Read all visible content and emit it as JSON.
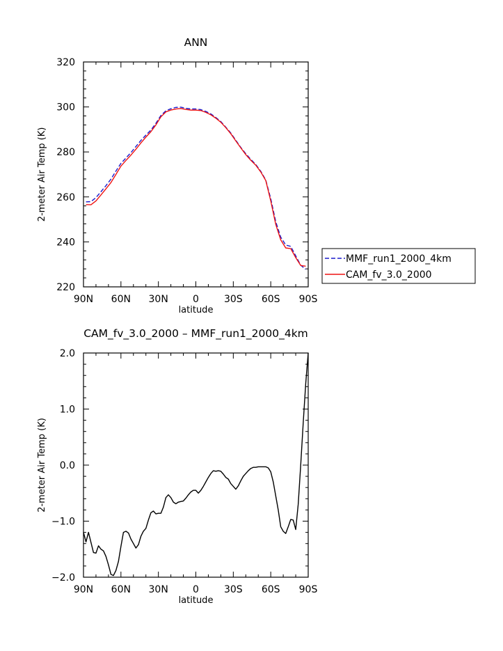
{
  "chart_data": [
    {
      "type": "line",
      "title": "ANN",
      "xlabel": "latitude",
      "ylabel": "2-meter Air Temp (K)",
      "xlim": [
        90,
        -90
      ],
      "ylim": [
        220,
        320
      ],
      "x_ticks": [
        {
          "value": 90,
          "label": "90N"
        },
        {
          "value": 60,
          "label": "60N"
        },
        {
          "value": 30,
          "label": "30N"
        },
        {
          "value": 0,
          "label": "0"
        },
        {
          "value": -30,
          "label": "30S"
        },
        {
          "value": -60,
          "label": "60S"
        },
        {
          "value": -90,
          "label": "90S"
        }
      ],
      "y_ticks": [
        {
          "value": 220,
          "label": "220"
        },
        {
          "value": 240,
          "label": "240"
        },
        {
          "value": 260,
          "label": "260"
        },
        {
          "value": 280,
          "label": "280"
        },
        {
          "value": 300,
          "label": "300"
        },
        {
          "value": 320,
          "label": "320"
        }
      ],
      "legend_position": "right",
      "x": [
        88,
        84,
        80,
        76,
        72,
        68,
        64,
        60,
        56,
        52,
        48,
        44,
        40,
        36,
        32,
        28,
        24,
        20,
        16,
        12,
        8,
        4,
        0,
        -4,
        -8,
        -12,
        -16,
        -20,
        -24,
        -28,
        -32,
        -36,
        -40,
        -44,
        -48,
        -52,
        -56,
        -60,
        -64,
        -68,
        -72,
        -76,
        -80,
        -84,
        -88
      ],
      "series": [
        {
          "name": "MMF_run1_2000_4km",
          "color": "#1a1acc",
          "dash": "dashed",
          "values": [
            257.8,
            257.9,
            259.7,
            262.3,
            265.0,
            267.9,
            271.5,
            274.9,
            277.3,
            279.7,
            282.4,
            285.1,
            287.5,
            289.7,
            292.7,
            296.2,
            298.3,
            299.2,
            299.8,
            299.9,
            299.4,
            299.1,
            299.1,
            298.8,
            298.0,
            296.9,
            295.3,
            293.5,
            291.0,
            288.4,
            285.2,
            282.0,
            279.2,
            276.7,
            274.4,
            271.4,
            267.5,
            259.2,
            249.0,
            242.1,
            238.6,
            238.0,
            233.8,
            229.6,
            227.8
          ]
        },
        {
          "name": "CAM_fv_3.0_2000",
          "color": "#ee1111",
          "dash": "solid",
          "values": [
            256.6,
            256.5,
            258.2,
            260.9,
            263.6,
            266.4,
            270.0,
            273.7,
            276.2,
            278.6,
            281.2,
            284.0,
            286.6,
            289.0,
            292.0,
            295.6,
            297.8,
            298.6,
            299.1,
            299.3,
            298.9,
            298.6,
            298.6,
            298.4,
            297.6,
            296.5,
            295.0,
            293.2,
            290.8,
            288.1,
            284.9,
            281.8,
            278.8,
            276.3,
            274.1,
            271.1,
            267.3,
            258.2,
            247.8,
            240.9,
            237.3,
            237.0,
            233.0,
            229.5,
            229.2
          ]
        }
      ]
    },
    {
      "type": "line",
      "title": "CAM_fv_3.0_2000 – MMF_run1_2000_4km",
      "xlabel": "latitude",
      "ylabel": "2-meter Air Temp (K)",
      "xlim": [
        90,
        -90
      ],
      "ylim": [
        -2.0,
        2.0
      ],
      "x_ticks": [
        {
          "value": 90,
          "label": "90N"
        },
        {
          "value": 60,
          "label": "60N"
        },
        {
          "value": 30,
          "label": "30N"
        },
        {
          "value": 0,
          "label": "0"
        },
        {
          "value": -30,
          "label": "30S"
        },
        {
          "value": -60,
          "label": "60S"
        },
        {
          "value": -90,
          "label": "90S"
        }
      ],
      "y_ticks": [
        {
          "value": -2.0,
          "label": "−2.0"
        },
        {
          "value": -1.0,
          "label": "−1.0"
        },
        {
          "value": 0.0,
          "label": "0.0"
        },
        {
          "value": 1.0,
          "label": "1.0"
        },
        {
          "value": 2.0,
          "label": "2.0"
        }
      ],
      "x": [
        90,
        88,
        86,
        84,
        82,
        80,
        78,
        76,
        74,
        72,
        70,
        68,
        66,
        64,
        62,
        60,
        58,
        56,
        54,
        52,
        50,
        48,
        46,
        44,
        42,
        40,
        38,
        36,
        34,
        32,
        30,
        28,
        26,
        24,
        22,
        20,
        18,
        16,
        14,
        12,
        10,
        8,
        6,
        4,
        2,
        0,
        -2,
        -4,
        -6,
        -8,
        -10,
        -12,
        -14,
        -16,
        -18,
        -20,
        -22,
        -24,
        -26,
        -28,
        -30,
        -32,
        -34,
        -36,
        -38,
        -40,
        -42,
        -44,
        -46,
        -48,
        -50,
        -52,
        -54,
        -56,
        -58,
        -60,
        -62,
        -64,
        -66,
        -68,
        -70,
        -72,
        -74,
        -76,
        -78,
        -80,
        -82,
        -84,
        -86,
        -88,
        -90
      ],
      "series": [
        {
          "name": "",
          "color": "#000000",
          "dash": "solid",
          "values": [
            -1.2,
            -1.37,
            -1.2,
            -1.38,
            -1.56,
            -1.57,
            -1.44,
            -1.5,
            -1.53,
            -1.63,
            -1.78,
            -1.95,
            -1.97,
            -1.88,
            -1.72,
            -1.45,
            -1.2,
            -1.18,
            -1.21,
            -1.32,
            -1.4,
            -1.48,
            -1.42,
            -1.27,
            -1.18,
            -1.13,
            -0.98,
            -0.85,
            -0.82,
            -0.87,
            -0.86,
            -0.86,
            -0.75,
            -0.58,
            -0.53,
            -0.58,
            -0.66,
            -0.69,
            -0.66,
            -0.65,
            -0.64,
            -0.59,
            -0.53,
            -0.48,
            -0.45,
            -0.45,
            -0.5,
            -0.45,
            -0.38,
            -0.3,
            -0.22,
            -0.15,
            -0.1,
            -0.11,
            -0.1,
            -0.11,
            -0.16,
            -0.22,
            -0.25,
            -0.33,
            -0.38,
            -0.43,
            -0.37,
            -0.28,
            -0.2,
            -0.15,
            -0.1,
            -0.06,
            -0.04,
            -0.04,
            -0.03,
            -0.03,
            -0.03,
            -0.03,
            -0.05,
            -0.12,
            -0.3,
            -0.55,
            -0.8,
            -1.1,
            -1.18,
            -1.22,
            -1.1,
            -0.97,
            -0.98,
            -1.15,
            -0.7,
            0.0,
            0.75,
            1.45,
            2.0
          ]
        }
      ]
    }
  ]
}
